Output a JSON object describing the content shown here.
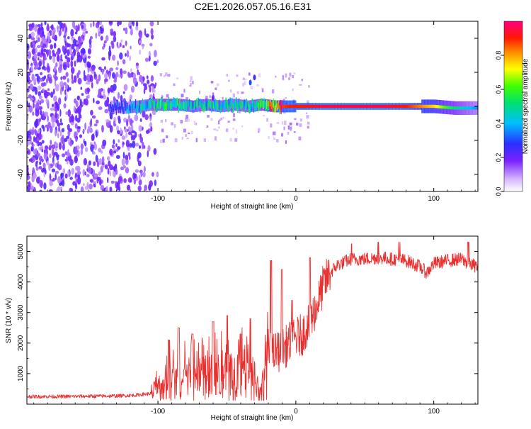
{
  "title": "C2E1.2026.057.05.16.E31",
  "chart_data": [
    {
      "type": "heatmap",
      "xlabel": "Height of straight line (km)",
      "ylabel": "Frequency (Hz)",
      "xlim": [
        -195,
        132
      ],
      "ylim": [
        -50,
        50
      ],
      "xticks": [
        "-100",
        "0",
        "100"
      ],
      "xtick_values": [
        -100,
        0,
        100
      ],
      "yticks": [
        "40",
        "20",
        "0",
        "-20",
        "-40"
      ],
      "ytick_values": [
        40,
        20,
        0,
        -20,
        -40
      ],
      "signal_track": {
        "x": [
          -135,
          -125,
          -115,
          -105,
          -95,
          -85,
          -75,
          -65,
          -55,
          -45,
          -35,
          -25,
          -15,
          -5,
          5,
          20,
          40,
          60,
          80,
          100,
          115,
          132
        ],
        "freq": [
          0,
          -1,
          0,
          1,
          1,
          1,
          0,
          1,
          0,
          1,
          0,
          1,
          0,
          0,
          0,
          0,
          0,
          0,
          0,
          0,
          -1,
          -1
        ],
        "amplitude": [
          0.25,
          0.3,
          0.4,
          0.45,
          0.5,
          0.5,
          0.45,
          0.45,
          0.45,
          0.45,
          0.45,
          0.5,
          0.85,
          0.9,
          0.9,
          0.95,
          0.95,
          0.95,
          0.9,
          0.75,
          0.5,
          0.35
        ]
      },
      "noise_region_x": [
        -195,
        -100
      ],
      "colorbar": {
        "label": "Normalized spectral amplitude",
        "ticks": [
          "0.8",
          "0.6",
          "0.4",
          "0.2",
          "0.0"
        ],
        "tick_values": [
          0.8,
          0.6,
          0.4,
          0.2,
          0.0
        ],
        "range": [
          0,
          1
        ]
      }
    },
    {
      "type": "line",
      "xlabel": "Height of straight line (km)",
      "ylabel": "SNR (10 * v/v)",
      "xlim": [
        -195,
        132
      ],
      "ylim": [
        0,
        5500
      ],
      "xticks": [
        "-100",
        "0",
        "100"
      ],
      "xtick_values": [
        -100,
        0,
        100
      ],
      "yticks": [
        "1000",
        "2000",
        "3000",
        "4000",
        "5000"
      ],
      "ytick_values": [
        1000,
        2000,
        3000,
        4000,
        5000
      ],
      "color": "#e8312f",
      "series": [
        {
          "name": "SNR",
          "x": [
            -195,
            -170,
            -150,
            -130,
            -115,
            -105,
            -100,
            -95,
            -90,
            -85,
            -80,
            -70,
            -60,
            -50,
            -40,
            -35,
            -30,
            -27,
            -25,
            -22,
            -20,
            -17,
            -15,
            -12,
            -10,
            -7,
            -5,
            -2,
            0,
            5,
            10,
            15,
            20,
            25,
            30,
            35,
            40,
            50,
            60,
            70,
            80,
            90,
            95,
            100,
            110,
            120,
            125,
            132
          ],
          "y": [
            250,
            250,
            260,
            270,
            300,
            350,
            450,
            650,
            700,
            750,
            800,
            850,
            900,
            950,
            1000,
            900,
            600,
            450,
            400,
            1300,
            1800,
            1600,
            1700,
            1750,
            1800,
            1900,
            2000,
            2050,
            2150,
            2300,
            2700,
            3200,
            3900,
            4300,
            4550,
            4650,
            4750,
            4750,
            4800,
            4750,
            4700,
            4500,
            4300,
            4600,
            4700,
            4750,
            4600,
            4500
          ]
        }
      ],
      "spikes": [
        {
          "x": -92,
          "y": 2100
        },
        {
          "x": -85,
          "y": 2500
        },
        {
          "x": -75,
          "y": 2300
        },
        {
          "x": -60,
          "y": 2700
        },
        {
          "x": -50,
          "y": 2900
        },
        {
          "x": -40,
          "y": 2300
        },
        {
          "x": -33,
          "y": 2800
        },
        {
          "x": -18,
          "y": 4700
        },
        {
          "x": -10,
          "y": 4400
        },
        {
          "x": -3,
          "y": 3400
        },
        {
          "x": 10,
          "y": 4800
        },
        {
          "x": 40,
          "y": 5250
        },
        {
          "x": 60,
          "y": 5300
        },
        {
          "x": 75,
          "y": 5300
        },
        {
          "x": 125,
          "y": 5300
        }
      ]
    }
  ]
}
